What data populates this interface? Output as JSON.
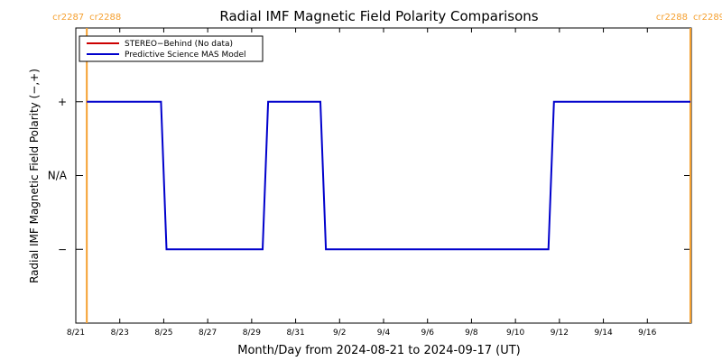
{
  "colors": {
    "stereo": "#cc0000",
    "model": "#0000cc",
    "carrington": "#f5a030",
    "axis": "#000000"
  },
  "chart_data": {
    "type": "line",
    "title": "Radial IMF Magnetic Field Polarity Comparisons",
    "xlabel": "Month/Day from 2024-08-21 to 2024-09-17 (UT)",
    "ylabel": "Radial IMF Magnetic Field Polarity (−,+)",
    "x_range": [
      "2024-08-21",
      "2024-09-17"
    ],
    "x_ticks": [
      {
        "date": "2024-08-21",
        "label": "8/21"
      },
      {
        "date": "2024-08-23",
        "label": "8/23"
      },
      {
        "date": "2024-08-25",
        "label": "8/25"
      },
      {
        "date": "2024-08-27",
        "label": "8/27"
      },
      {
        "date": "2024-08-29",
        "label": "8/29"
      },
      {
        "date": "2024-08-31",
        "label": "8/31"
      },
      {
        "date": "2024-09-02",
        "label": "9/2"
      },
      {
        "date": "2024-09-04",
        "label": "9/4"
      },
      {
        "date": "2024-09-06",
        "label": "9/6"
      },
      {
        "date": "2024-09-08",
        "label": "9/8"
      },
      {
        "date": "2024-09-10",
        "label": "9/10"
      },
      {
        "date": "2024-09-12",
        "label": "9/12"
      },
      {
        "date": "2024-09-14",
        "label": "9/14"
      },
      {
        "date": "2024-09-16",
        "label": "9/16"
      }
    ],
    "y_range": [
      -2,
      2
    ],
    "y_ticks": [
      {
        "value": 1,
        "label": "+"
      },
      {
        "value": 0,
        "label": "N/A"
      },
      {
        "value": -1,
        "label": "−"
      }
    ],
    "legend_position": "top-left",
    "series": [
      {
        "name": "STEREO−Behind (No data)",
        "color": "#cc0000",
        "x": [],
        "y": []
      },
      {
        "name": "Predictive Science MAS Model",
        "color": "#0000cc",
        "x": [
          "2024-08-21T12:00",
          "2024-08-24T21:00",
          "2024-08-25T03:00",
          "2024-08-29T12:00",
          "2024-08-29T18:00",
          "2024-09-01T03:00",
          "2024-09-01T09:00",
          "2024-09-11T12:00",
          "2024-09-11T18:00",
          "2024-09-17T23:00"
        ],
        "y": [
          1,
          1,
          -1,
          -1,
          1,
          1,
          -1,
          -1,
          1,
          1
        ]
      }
    ],
    "carrington_markers": [
      {
        "date": "2024-08-21T12:00",
        "left_label": "cr2287",
        "right_label": "cr2288",
        "side": "left"
      },
      {
        "date": "2024-09-17T23:00",
        "left_label": "cr2288",
        "right_label": "cr2289",
        "side": "right"
      }
    ]
  }
}
